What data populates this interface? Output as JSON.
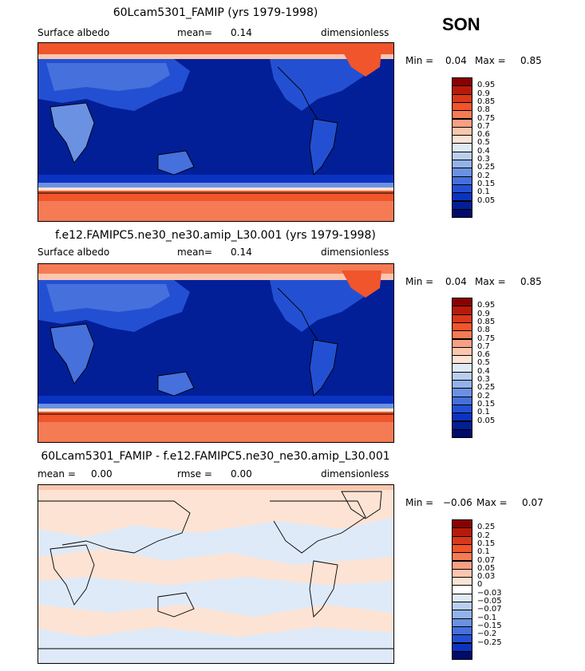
{
  "season": "SON",
  "panels": [
    {
      "title": "60Lcam5301_FAMIP (yrs 1979-1998)",
      "left": "Surface albedo",
      "center_label": "mean=",
      "center_value": "0.14",
      "right": "dimensionless",
      "min_label": "Min =",
      "min_value": "0.04",
      "max_label": "Max =",
      "max_value": "0.85",
      "colorbar": {
        "colors": [
          "#8b0000",
          "#b81a0a",
          "#d9391a",
          "#f0552b",
          "#f57b55",
          "#f7a083",
          "#fbc6ad",
          "#fde3d3",
          "#dfeaf8",
          "#b9cff1",
          "#93b2ea",
          "#6b91e2",
          "#4670dc",
          "#2350d2",
          "#0b33c2",
          "#021f98",
          "#000c6b"
        ],
        "labels": [
          "0.95",
          "0.9",
          "0.85",
          "0.8",
          "0.75",
          "0.7",
          "0.6",
          "0.5",
          "0.4",
          "0.3",
          "0.25",
          "0.2",
          "0.15",
          "0.1",
          "0.05"
        ]
      }
    },
    {
      "title": "f.e12.FAMIPC5.ne30_ne30.amip_L30.001 (yrs 1979-1998)",
      "left": "Surface albedo",
      "center_label": "mean=",
      "center_value": "0.14",
      "right": "dimensionless",
      "min_label": "Min =",
      "min_value": "0.04",
      "max_label": "Max =",
      "max_value": "0.85",
      "colorbar": {
        "colors": [
          "#8b0000",
          "#b81a0a",
          "#d9391a",
          "#f0552b",
          "#f57b55",
          "#f7a083",
          "#fbc6ad",
          "#fde3d3",
          "#dfeaf8",
          "#b9cff1",
          "#93b2ea",
          "#6b91e2",
          "#4670dc",
          "#2350d2",
          "#0b33c2",
          "#021f98",
          "#000c6b"
        ],
        "labels": [
          "0.95",
          "0.9",
          "0.85",
          "0.8",
          "0.75",
          "0.7",
          "0.6",
          "0.5",
          "0.4",
          "0.3",
          "0.25",
          "0.2",
          "0.15",
          "0.1",
          "0.05"
        ]
      }
    },
    {
      "title": "60Lcam5301_FAMIP - f.e12.FAMIPC5.ne30_ne30.amip_L30.001",
      "left": "mean =     0.00",
      "center_label": "rmse =",
      "center_value": "0.00",
      "right": "dimensionless",
      "min_label": "Min =",
      "min_value": "−0.06",
      "max_label": "Max =",
      "max_value": "0.07",
      "colorbar": {
        "colors": [
          "#8b0000",
          "#b81a0a",
          "#d9391a",
          "#f0552b",
          "#f57b55",
          "#f7a083",
          "#fbc6ad",
          "#fde3d3",
          "#ffffff",
          "#dfeaf8",
          "#b9cff1",
          "#93b2ea",
          "#6b91e2",
          "#4670dc",
          "#2350d2",
          "#0b33c2",
          "#000c6b"
        ],
        "labels": [
          "0.25",
          "0.2",
          "0.15",
          "0.1",
          "0.07",
          "0.05",
          "0.03",
          "0",
          "−0.03",
          "−0.05",
          "−0.07",
          "−0.1",
          "−0.15",
          "−0.2",
          "−0.25"
        ]
      }
    }
  ]
}
